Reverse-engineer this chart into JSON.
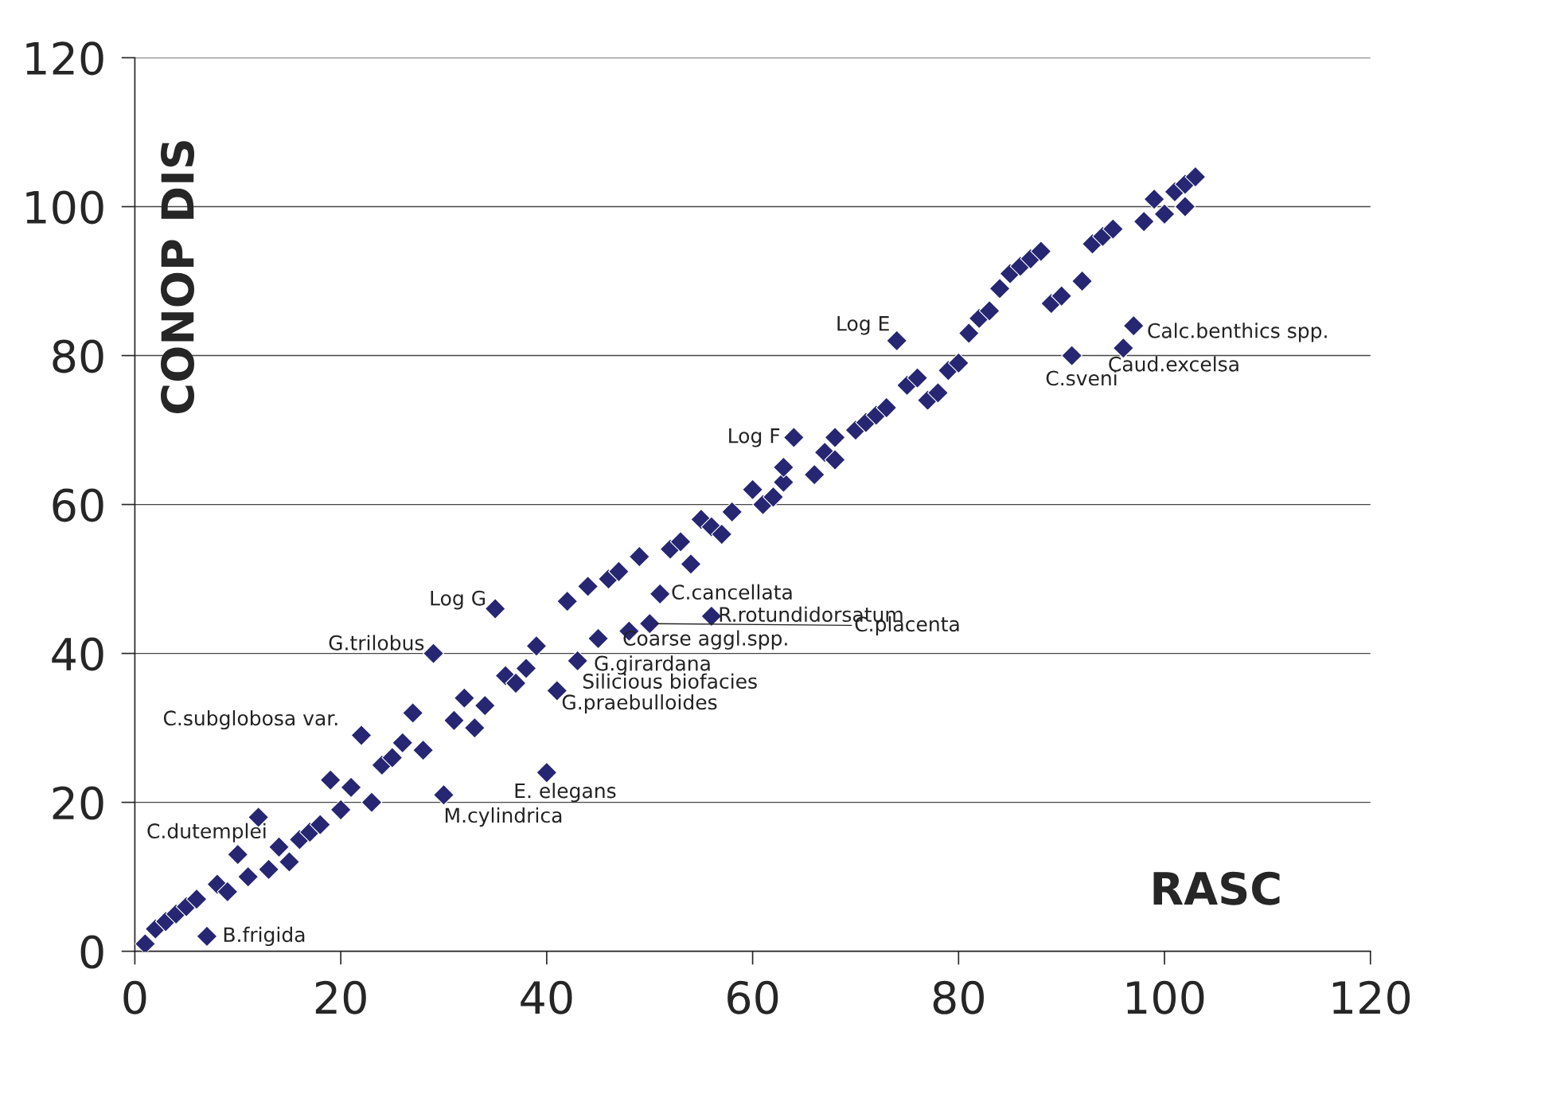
{
  "chart_data": {
    "type": "scatter",
    "xlabel": "RASC",
    "ylabel": "CONOP DIS",
    "xlim": [
      0,
      120
    ],
    "ylim": [
      0,
      120
    ],
    "xticks": [
      0,
      20,
      40,
      60,
      80,
      100,
      120
    ],
    "yticks": [
      0,
      20,
      40,
      60,
      80,
      100,
      120
    ],
    "grid": "y",
    "marker": "diamond",
    "series": [
      {
        "color": "#262673",
        "x": [
          1,
          2,
          3,
          4,
          5,
          6,
          7,
          8,
          9,
          10,
          11,
          12,
          13,
          14,
          15,
          16,
          17,
          18,
          19,
          20,
          21,
          22,
          23,
          24,
          25,
          26,
          27,
          28,
          29,
          30,
          31,
          32,
          33,
          34,
          35,
          36,
          37,
          38,
          39,
          40,
          41,
          42,
          43,
          44,
          45,
          46,
          47,
          48,
          49,
          50,
          51,
          52,
          53,
          54,
          55,
          56,
          56,
          57,
          58,
          60,
          61,
          62,
          63,
          63,
          64,
          66,
          67,
          68,
          68,
          70,
          71,
          72,
          73,
          74,
          75,
          76,
          77,
          78,
          79,
          80,
          81,
          82,
          83,
          84,
          85,
          86,
          87,
          88,
          89,
          90,
          91,
          92,
          93,
          94,
          95,
          96,
          97,
          98,
          99,
          100,
          101,
          102,
          102,
          103
        ],
        "values": [
          1,
          3,
          4,
          5,
          6,
          7,
          2,
          9,
          8,
          13,
          10,
          18,
          11,
          14,
          12,
          15,
          16,
          17,
          23,
          19,
          22,
          29,
          20,
          25,
          26,
          28,
          32,
          27,
          40,
          21,
          31,
          34,
          30,
          33,
          46,
          37,
          36,
          38,
          41,
          24,
          35,
          47,
          39,
          49,
          42,
          50,
          51,
          43,
          53,
          44,
          48,
          54,
          55,
          52,
          58,
          45,
          57,
          56,
          59,
          62,
          60,
          61,
          63,
          65,
          69,
          64,
          67,
          66,
          69,
          70,
          71,
          72,
          73,
          82,
          76,
          77,
          74,
          75,
          78,
          79,
          83,
          85,
          86,
          89,
          91,
          92,
          93,
          94,
          87,
          88,
          80,
          90,
          95,
          96,
          97,
          81,
          84,
          98,
          101,
          99,
          102,
          100,
          103,
          104
        ]
      }
    ],
    "annotations": [
      {
        "text": "B.frigida",
        "x": 7,
        "y": 2
      },
      {
        "text": "C.dutemplei",
        "x": 12,
        "y": 18
      },
      {
        "text": "C.subglobosa var.",
        "x": 22,
        "y": 29
      },
      {
        "text": "G.trilobus",
        "x": 29,
        "y": 40
      },
      {
        "text": "M.cylindrica",
        "x": 30,
        "y": 21
      },
      {
        "text": "Log G",
        "x": 35,
        "y": 46
      },
      {
        "text": "E. elegans",
        "x": 40,
        "y": 24
      },
      {
        "text": "G.praebulloides",
        "x": 41,
        "y": 35
      },
      {
        "text": "Silicious biofacies",
        "x": 43,
        "y": 39
      },
      {
        "text": "G.girardana",
        "x": 45,
        "y": 42
      },
      {
        "text": "Coarse aggl.spp.",
        "x": 48,
        "y": 43
      },
      {
        "text": "C.placenta",
        "x": 50,
        "y": 44
      },
      {
        "text": "C.cancellata",
        "x": 51,
        "y": 48
      },
      {
        "text": "R.rotundidorsatum",
        "x": 56,
        "y": 45
      },
      {
        "text": "Log F",
        "x": 64,
        "y": 69
      },
      {
        "text": "Log E",
        "x": 74,
        "y": 82
      },
      {
        "text": "C.sveni",
        "x": 91,
        "y": 80
      },
      {
        "text": "Caud.excelsa",
        "x": 96,
        "y": 81
      },
      {
        "text": "Calc.benthics spp.",
        "x": 97,
        "y": 84
      }
    ]
  }
}
